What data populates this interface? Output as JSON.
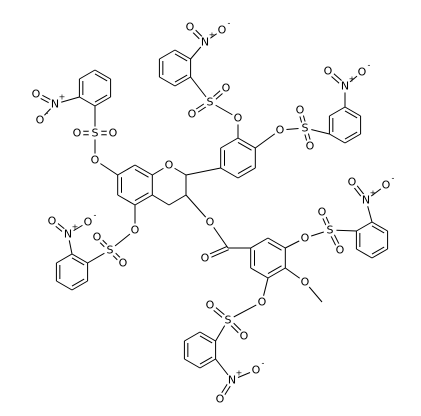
{
  "core_atoms": [
    "O",
    "O",
    "O",
    "O"
  ],
  "nosyl_groups": [
    {
      "atoms": [
        "O",
        "S",
        "O",
        "O",
        "N",
        "+",
        "O",
        "O",
        "-"
      ]
    },
    {
      "atoms": [
        "O",
        "S",
        "O",
        "O",
        "N",
        "+",
        "O",
        "O",
        "-"
      ]
    },
    {
      "atoms": [
        "O",
        "S",
        "O",
        "O",
        "N",
        "+",
        "O",
        "O",
        "-"
      ]
    },
    {
      "atoms": [
        "O",
        "S",
        "O",
        "O",
        "N",
        "+",
        "O",
        "O",
        "-"
      ]
    },
    {
      "atoms": [
        "O",
        "S",
        "O",
        "O",
        "N",
        "+",
        "O",
        "O",
        "-"
      ]
    },
    {
      "atoms": [
        "O",
        "S",
        "O",
        "O",
        "N",
        "+",
        "O",
        "O",
        "-"
      ]
    }
  ]
}
